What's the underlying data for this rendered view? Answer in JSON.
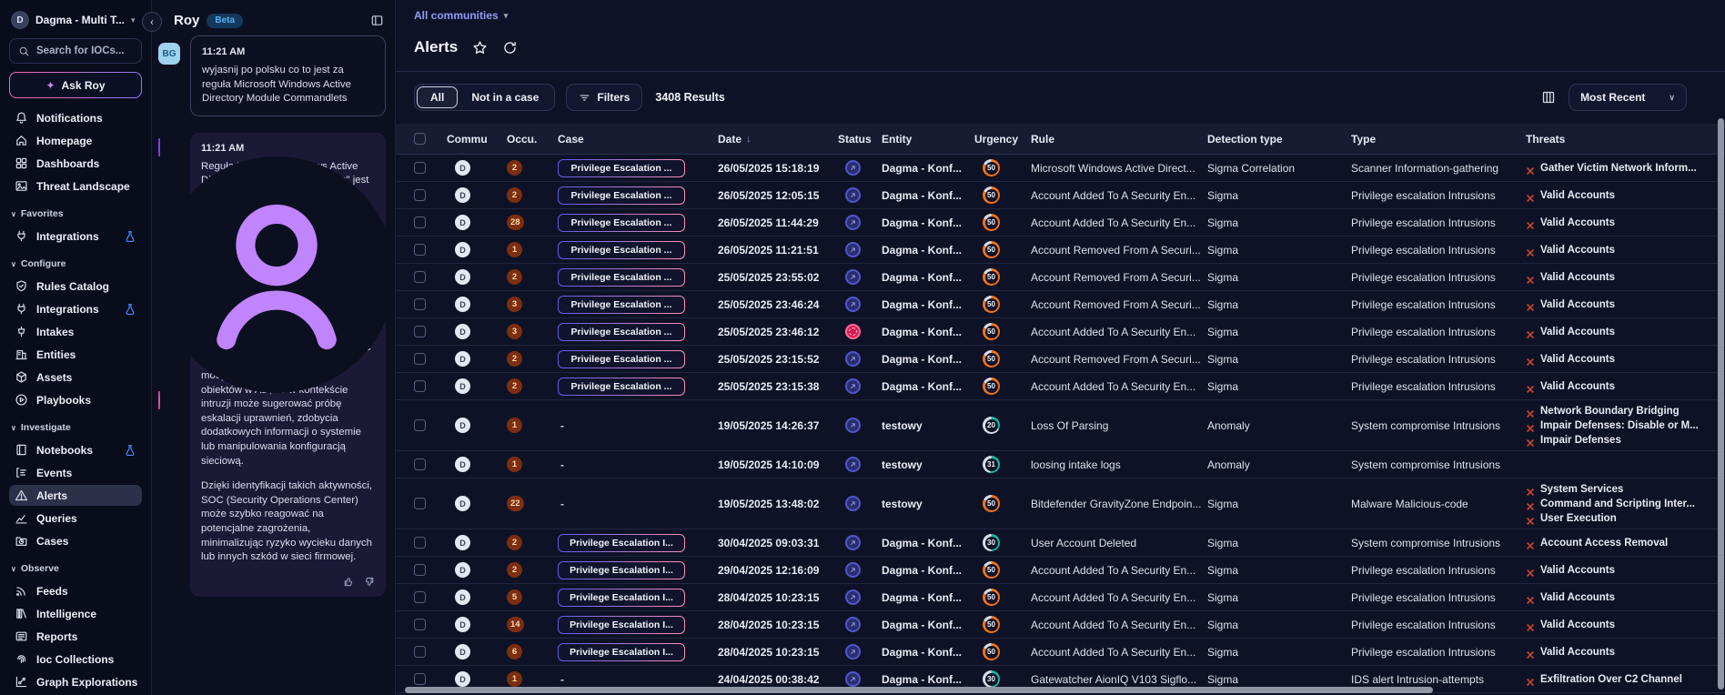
{
  "sidebar": {
    "workspace": {
      "initial": "D",
      "name": "Dagma - Multi T..."
    },
    "search_placeholder": "Search for IOCs...",
    "ask_roy_label": "Ask Roy",
    "sections": [
      {
        "id": "top",
        "header": null,
        "items": [
          {
            "label": "Notifications",
            "icon": "bell"
          },
          {
            "label": "Homepage",
            "icon": "home"
          },
          {
            "label": "Dashboards",
            "icon": "grid"
          },
          {
            "label": "Threat Landscape",
            "icon": "image"
          }
        ]
      },
      {
        "id": "favorites",
        "header": "Favorites",
        "items": [
          {
            "label": "Integrations",
            "icon": "plug",
            "flask": true
          }
        ]
      },
      {
        "id": "configure",
        "header": "Configure",
        "items": [
          {
            "label": "Rules Catalog",
            "icon": "shield"
          },
          {
            "label": "Integrations",
            "icon": "plug",
            "flask": true
          },
          {
            "label": "Intakes",
            "icon": "intake"
          },
          {
            "label": "Entities",
            "icon": "building"
          },
          {
            "label": "Assets",
            "icon": "cube"
          },
          {
            "label": "Playbooks",
            "icon": "play"
          }
        ]
      },
      {
        "id": "investigate",
        "header": "Investigate",
        "items": [
          {
            "label": "Notebooks",
            "icon": "book",
            "flask": true
          },
          {
            "label": "Events",
            "icon": "events"
          },
          {
            "label": "Alerts",
            "icon": "alert",
            "active": true
          },
          {
            "label": "Queries",
            "icon": "chart"
          },
          {
            "label": "Cases",
            "icon": "case"
          }
        ]
      },
      {
        "id": "observe",
        "header": "Observe",
        "items": [
          {
            "label": "Feeds",
            "icon": "rss"
          },
          {
            "label": "Intelligence",
            "icon": "books"
          },
          {
            "label": "Reports",
            "icon": "news"
          },
          {
            "label": "Ioc Collections",
            "icon": "fingerprint"
          },
          {
            "label": "Graph Explorations",
            "icon": "graph"
          }
        ]
      }
    ]
  },
  "chat": {
    "title": "Roy",
    "beta_label": "Beta",
    "messages": [
      {
        "author": "user",
        "avatar": "BG",
        "time": "11:21 AM",
        "paragraphs": [
          "wyjasnij po polsku co to jest za reguła Microsoft Windows Active Directory Module Commandlets"
        ]
      },
      {
        "author": "bot",
        "avatar": "roy",
        "time": "11:21 AM",
        "feedback": true,
        "paragraphs": [
          "Reguła \"Microsoft Windows Active Directory Module Commandlets\" jest zaprojektowana do wykrywania potencjalnie podejrzanych operacji w systemie Windows, które mogą wskazywać na nieautoryzowane działania związane z Active Directory.",
          "Reguła ta działa poprzez monitorowanie wykorzystania określonych poleceń lub parametrów w skryptach PowerShell, które są typowo używane do zarządzania Active Directory. Może to obejmować operacje takie jak tworzenie, modyfikowanie lub usuwanie obiektów w AD, co w kontekście intruzji może sugerować próbę eskalacji uprawnień, zdobycia dodatkowych informacji o systemie lub manipulowania konfiguracją sieciową.",
          "Dzięki identyfikacji takich aktywności, SOC (Security Operations Center) może szybko reagować na potencjalne zagrożenia, minimalizując ryzyko wycieku danych lub innych szkód w sieci firmowej."
        ]
      }
    ]
  },
  "main": {
    "communities_label": "All communities",
    "title": "Alerts",
    "filters": {
      "all_label": "All",
      "not_in_case_label": "Not in a case",
      "filters_label": "Filters",
      "results_label": "3408 Results"
    },
    "sort_label": "Most Recent",
    "table": {
      "columns": [
        "Commu",
        "Occu.",
        "Case",
        "Date",
        "Status",
        "Entity",
        "Urgency",
        "Rule",
        "Detection type",
        "Type",
        "Threats"
      ],
      "rows": [
        {
          "commu": "D",
          "occu": "2",
          "case": "Privilege Escalation ...",
          "date": "26/05/2025 15:18:19",
          "status": "ack",
          "entity": "Dagma - Konf...",
          "urgency": "50",
          "urgency_color": "#f97316",
          "urgency_pct": 83,
          "rule": "Microsoft Windows Active Direct...",
          "detection": "Sigma Correlation",
          "type": "Scanner Information-gathering",
          "threats": [
            "Gather Victim Network Inform..."
          ]
        },
        {
          "commu": "D",
          "occu": "2",
          "case": "Privilege Escalation ...",
          "date": "26/05/2025 12:05:15",
          "status": "ack",
          "entity": "Dagma - Konf...",
          "urgency": "50",
          "urgency_color": "#f97316",
          "urgency_pct": 83,
          "rule": "Account Added To A Security En...",
          "detection": "Sigma",
          "type": "Privilege escalation Intrusions",
          "threats": [
            "Valid Accounts"
          ]
        },
        {
          "commu": "D",
          "occu": "28",
          "case": "Privilege Escalation ...",
          "date": "26/05/2025 11:44:29",
          "status": "ack",
          "entity": "Dagma - Konf...",
          "urgency": "50",
          "urgency_color": "#f97316",
          "urgency_pct": 83,
          "rule": "Account Added To A Security En...",
          "detection": "Sigma",
          "type": "Privilege escalation Intrusions",
          "threats": [
            "Valid Accounts"
          ]
        },
        {
          "commu": "D",
          "occu": "1",
          "case": "Privilege Escalation ...",
          "date": "26/05/2025 11:21:51",
          "status": "ack",
          "entity": "Dagma - Konf...",
          "urgency": "50",
          "urgency_color": "#f97316",
          "urgency_pct": 83,
          "rule": "Account Removed From A Securi...",
          "detection": "Sigma",
          "type": "Privilege escalation Intrusions",
          "threats": [
            "Valid Accounts"
          ]
        },
        {
          "commu": "D",
          "occu": "2",
          "case": "Privilege Escalation ...",
          "date": "25/05/2025 23:55:02",
          "status": "ack",
          "entity": "Dagma - Konf...",
          "urgency": "50",
          "urgency_color": "#f97316",
          "urgency_pct": 83,
          "rule": "Account Removed From A Securi...",
          "detection": "Sigma",
          "type": "Privilege escalation Intrusions",
          "threats": [
            "Valid Accounts"
          ]
        },
        {
          "commu": "D",
          "occu": "3",
          "case": "Privilege Escalation ...",
          "date": "25/05/2025 23:46:24",
          "status": "ack",
          "entity": "Dagma - Konf...",
          "urgency": "50",
          "urgency_color": "#f97316",
          "urgency_pct": 83,
          "rule": "Account Removed From A Securi...",
          "detection": "Sigma",
          "type": "Privilege escalation Intrusions",
          "threats": [
            "Valid Accounts"
          ]
        },
        {
          "commu": "D",
          "occu": "3",
          "case": "Privilege Escalation ...",
          "date": "25/05/2025 23:46:12",
          "status": "err",
          "entity": "Dagma - Konf...",
          "urgency": "50",
          "urgency_color": "#f97316",
          "urgency_pct": 83,
          "rule": "Account Added To A Security En...",
          "detection": "Sigma",
          "type": "Privilege escalation Intrusions",
          "threats": [
            "Valid Accounts"
          ]
        },
        {
          "commu": "D",
          "occu": "2",
          "case": "Privilege Escalation ...",
          "date": "25/05/2025 23:15:52",
          "status": "ack",
          "entity": "Dagma - Konf...",
          "urgency": "50",
          "urgency_color": "#f97316",
          "urgency_pct": 83,
          "rule": "Account Removed From A Securi...",
          "detection": "Sigma",
          "type": "Privilege escalation Intrusions",
          "threats": [
            "Valid Accounts"
          ]
        },
        {
          "commu": "D",
          "occu": "2",
          "case": "Privilege Escalation ...",
          "date": "25/05/2025 23:15:38",
          "status": "ack",
          "entity": "Dagma - Konf...",
          "urgency": "50",
          "urgency_color": "#f97316",
          "urgency_pct": 83,
          "rule": "Account Added To A Security En...",
          "detection": "Sigma",
          "type": "Privilege escalation Intrusions",
          "threats": [
            "Valid Accounts"
          ]
        },
        {
          "commu": "D",
          "occu": "1",
          "case": "-",
          "date": "19/05/2025 14:26:37",
          "status": "ack",
          "entity": "testowy",
          "urgency": "20",
          "urgency_color": "#14b8a6",
          "urgency_pct": 33,
          "rule": "Loss Of Parsing",
          "detection": "Anomaly",
          "type": "System compromise Intrusions",
          "threats": [
            "Network Boundary Bridging",
            "Impair Defenses: Disable or M...",
            "Impair Defenses"
          ]
        },
        {
          "commu": "D",
          "occu": "1",
          "case": "-",
          "date": "19/05/2025 14:10:09",
          "status": "ack",
          "entity": "testowy",
          "urgency": "31",
          "urgency_color": "#14b8a6",
          "urgency_pct": 52,
          "rule": "loosing intake logs",
          "detection": "Anomaly",
          "type": "System compromise Intrusions",
          "threats": []
        },
        {
          "commu": "D",
          "occu": "22",
          "case": "-",
          "date": "19/05/2025 13:48:02",
          "status": "ack",
          "entity": "testowy",
          "urgency": "50",
          "urgency_color": "#f97316",
          "urgency_pct": 83,
          "rule": "Bitdefender GravityZone Endpoin...",
          "detection": "Sigma",
          "type": "Malware Malicious-code",
          "threats": [
            "System Services",
            "Command and Scripting Inter...",
            "User Execution"
          ]
        },
        {
          "commu": "D",
          "occu": "2",
          "case": "Privilege Escalation I...",
          "date": "30/04/2025 09:03:31",
          "status": "ack",
          "entity": "Dagma - Konf...",
          "urgency": "30",
          "urgency_color": "#14b8a6",
          "urgency_pct": 50,
          "rule": "User Account Deleted",
          "detection": "Sigma",
          "type": "System compromise Intrusions",
          "threats": [
            "Account Access Removal"
          ]
        },
        {
          "commu": "D",
          "occu": "2",
          "case": "Privilege Escalation I...",
          "date": "29/04/2025 12:16:09",
          "status": "ack",
          "entity": "Dagma - Konf...",
          "urgency": "50",
          "urgency_color": "#f97316",
          "urgency_pct": 83,
          "rule": "Account Added To A Security En...",
          "detection": "Sigma",
          "type": "Privilege escalation Intrusions",
          "threats": [
            "Valid Accounts"
          ]
        },
        {
          "commu": "D",
          "occu": "5",
          "case": "Privilege Escalation I...",
          "date": "28/04/2025 10:23:15",
          "status": "ack",
          "entity": "Dagma - Konf...",
          "urgency": "50",
          "urgency_color": "#f97316",
          "urgency_pct": 83,
          "rule": "Account Added To A Security En...",
          "detection": "Sigma",
          "type": "Privilege escalation Intrusions",
          "threats": [
            "Valid Accounts"
          ]
        },
        {
          "commu": "D",
          "occu": "14",
          "case": "Privilege Escalation I...",
          "date": "28/04/2025 10:23:15",
          "status": "ack",
          "entity": "Dagma - Konf...",
          "urgency": "50",
          "urgency_color": "#f97316",
          "urgency_pct": 83,
          "rule": "Account Added To A Security En...",
          "detection": "Sigma",
          "type": "Privilege escalation Intrusions",
          "threats": [
            "Valid Accounts"
          ]
        },
        {
          "commu": "D",
          "occu": "6",
          "case": "Privilege Escalation I...",
          "date": "28/04/2025 10:23:15",
          "status": "ack",
          "entity": "Dagma - Konf...",
          "urgency": "50",
          "urgency_color": "#f97316",
          "urgency_pct": 83,
          "rule": "Account Added To A Security En...",
          "detection": "Sigma",
          "type": "Privilege escalation Intrusions",
          "threats": [
            "Valid Accounts"
          ]
        },
        {
          "commu": "D",
          "occu": "1",
          "case": "-",
          "date": "24/04/2025 00:38:42",
          "status": "ack",
          "entity": "Dagma - Konf...",
          "urgency": "30",
          "urgency_color": "#14b8a6",
          "urgency_pct": 50,
          "rule": "Gatewatcher AionIQ V103 Sigflo...",
          "detection": "Sigma",
          "type": "IDS alert Intrusion-attempts",
          "threats": [
            "Exfiltration Over C2 Channel"
          ]
        }
      ]
    }
  },
  "colors": {
    "urgency_high": "#f97316",
    "urgency_low": "#14b8a6",
    "status_ack": "#2b2d6e",
    "status_error": "#dc1a52",
    "case_badge_gradient": [
      "#5d5bf0",
      "#f792b6"
    ],
    "threat_icon": "#dd4a2e",
    "beta_badge_text": "#4fb0f5",
    "accent_link": "#8f9cf5"
  }
}
